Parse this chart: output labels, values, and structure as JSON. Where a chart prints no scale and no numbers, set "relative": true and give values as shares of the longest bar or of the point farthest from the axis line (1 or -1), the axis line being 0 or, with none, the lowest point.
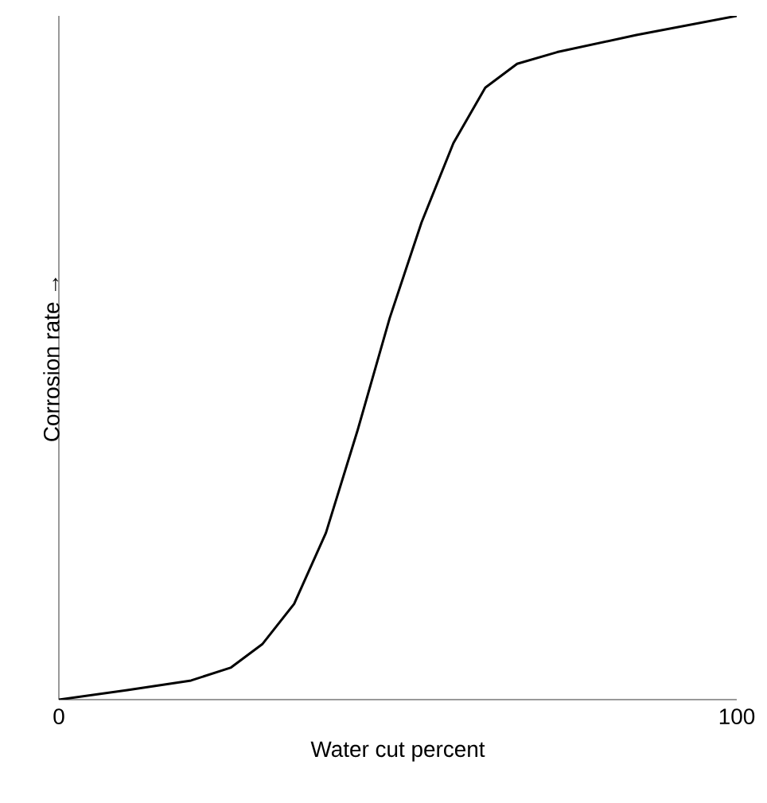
{
  "chart_data": {
    "type": "line",
    "xlabel": "Water cut percent",
    "ylabel": "Corrosion rate →",
    "relative": true,
    "x": [
      0,
      10.1,
      19.5,
      25.4,
      30,
      34.7,
      39.4,
      44.1,
      48.8,
      53.5,
      58.2,
      62.9,
      67.6,
      73.5,
      85.2,
      100
    ],
    "values": [
      0,
      0.014,
      0.028,
      0.047,
      0.081,
      0.14,
      0.244,
      0.395,
      0.558,
      0.698,
      0.814,
      0.895,
      0.93,
      0.947,
      0.972,
      1
    ],
    "color": "#000000",
    "xlim": [
      0,
      100
    ],
    "xticks": [
      0,
      100
    ],
    "grid": false,
    "marker": "none",
    "line_style": "solid"
  }
}
